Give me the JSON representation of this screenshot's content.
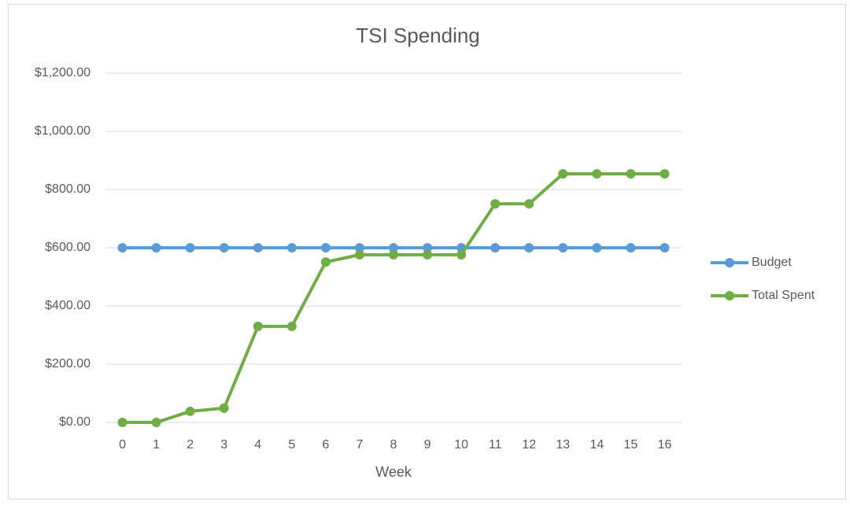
{
  "chart_data": {
    "type": "line",
    "title": "TSI Spending",
    "x_label": "Week",
    "categories": [
      0,
      1,
      2,
      3,
      4,
      5,
      6,
      7,
      8,
      9,
      10,
      11,
      12,
      13,
      14,
      15,
      16
    ],
    "series": [
      {
        "name": "Budget",
        "color": "#5b9bd5",
        "values": [
          600,
          600,
          600,
          600,
          600,
          600,
          600,
          600,
          600,
          600,
          600,
          600,
          600,
          600,
          600,
          600,
          600
        ]
      },
      {
        "name": "Total Spent",
        "color": "#70ad47",
        "values": [
          0,
          0,
          38,
          49,
          330,
          330,
          551,
          576,
          576,
          576,
          576,
          751,
          751,
          854,
          854,
          854,
          854
        ]
      }
    ],
    "ylim": [
      0,
      1200
    ],
    "yticks": [
      {
        "value": 0,
        "label": "$0.00"
      },
      {
        "value": 200,
        "label": "$200.00"
      },
      {
        "value": 400,
        "label": "$400.00"
      },
      {
        "value": 600,
        "label": "$600.00"
      },
      {
        "value": 800,
        "label": "$800.00"
      },
      {
        "value": 1000,
        "label": "$1,000.00"
      },
      {
        "value": 1200,
        "label": "$1,200.00"
      }
    ],
    "grid": true,
    "legend": "right"
  }
}
